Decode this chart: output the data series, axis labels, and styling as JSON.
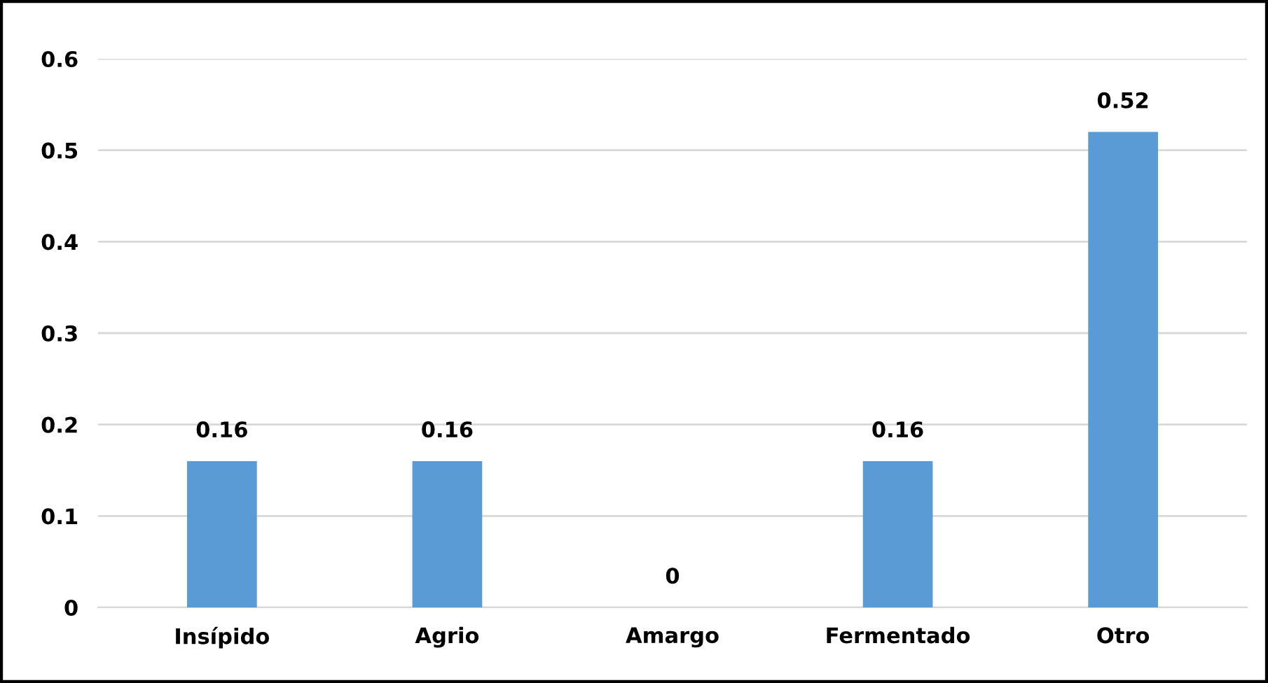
{
  "chart_data": {
    "type": "bar",
    "categories": [
      "Insípido",
      "Agrio",
      "Amargo",
      "Fermentado",
      "Otro"
    ],
    "values": [
      0.16,
      0.16,
      0,
      0.16,
      0.52
    ],
    "color": "#5b9bd5",
    "ylim": [
      0,
      0.6
    ],
    "yticks": [
      0,
      0.1,
      0.2,
      0.3,
      0.4,
      0.5,
      0.6
    ],
    "grid": "y",
    "data_labels": true
  }
}
